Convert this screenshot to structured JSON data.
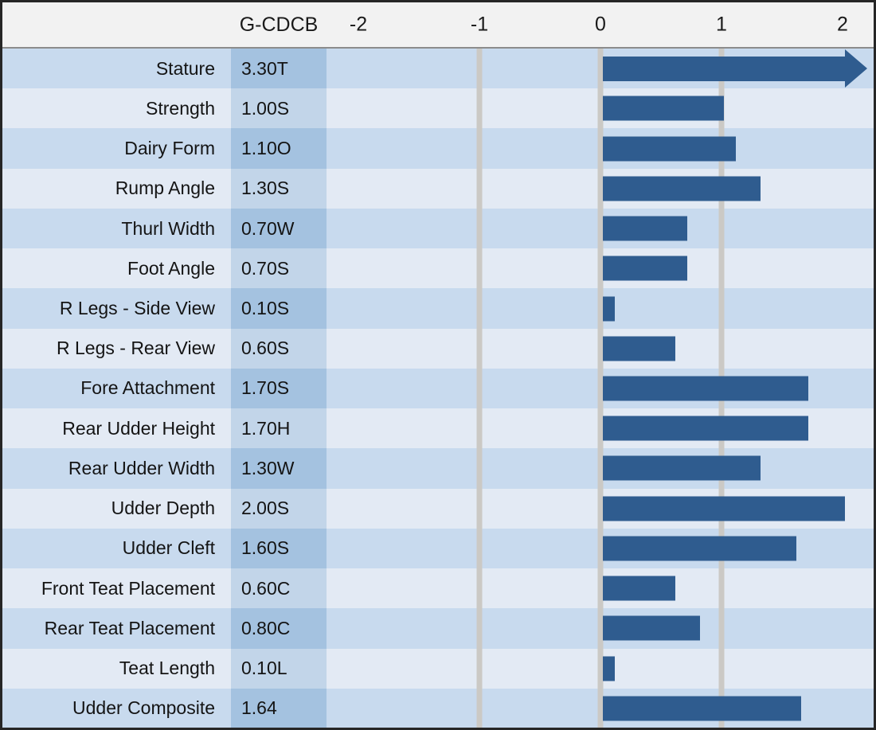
{
  "colors": {
    "bar": "#2f5c8f",
    "gridline": "#cbc9c5",
    "header_bg": "#f2f2f2",
    "outer_border": "#262626",
    "row_stripe_dark": "#c8daee",
    "row_stripe_light": "#e3eaf4",
    "value_col_stripe_dark": "#a4c2e0",
    "value_col_stripe_light": "#c2d5e9",
    "text": "#141414"
  },
  "chart_data": {
    "type": "bar",
    "orientation": "horizontal",
    "title": "",
    "xlabel": "",
    "ylabel": "",
    "value_column_header": "G-CDCB",
    "axis_ticks": [
      -2,
      -1,
      0,
      1,
      2
    ],
    "gridlines_at": [
      -1,
      0,
      1
    ],
    "xlim": [
      -2.3,
      2.25
    ],
    "bar_display_cap": 2.0,
    "legend": "none",
    "rows": [
      {
        "trait": "Stature",
        "value_label": "3.30T",
        "value": 3.3,
        "overflow_arrow": true
      },
      {
        "trait": "Strength",
        "value_label": "1.00S",
        "value": 1.0,
        "overflow_arrow": false
      },
      {
        "trait": "Dairy Form",
        "value_label": "1.10O",
        "value": 1.1,
        "overflow_arrow": false
      },
      {
        "trait": "Rump Angle",
        "value_label": "1.30S",
        "value": 1.3,
        "overflow_arrow": false
      },
      {
        "trait": "Thurl Width",
        "value_label": "0.70W",
        "value": 0.7,
        "overflow_arrow": false
      },
      {
        "trait": "Foot Angle",
        "value_label": "0.70S",
        "value": 0.7,
        "overflow_arrow": false
      },
      {
        "trait": "R Legs - Side View",
        "value_label": "0.10S",
        "value": 0.1,
        "overflow_arrow": false
      },
      {
        "trait": "R Legs - Rear View",
        "value_label": "0.60S",
        "value": 0.6,
        "overflow_arrow": false
      },
      {
        "trait": "Fore Attachment",
        "value_label": "1.70S",
        "value": 1.7,
        "overflow_arrow": false
      },
      {
        "trait": "Rear Udder Height",
        "value_label": "1.70H",
        "value": 1.7,
        "overflow_arrow": false
      },
      {
        "trait": "Rear Udder Width",
        "value_label": "1.30W",
        "value": 1.3,
        "overflow_arrow": false
      },
      {
        "trait": "Udder Depth",
        "value_label": "2.00S",
        "value": 2.0,
        "overflow_arrow": false
      },
      {
        "trait": "Udder Cleft",
        "value_label": "1.60S",
        "value": 1.6,
        "overflow_arrow": false
      },
      {
        "trait": "Front Teat Placement",
        "value_label": "0.60C",
        "value": 0.6,
        "overflow_arrow": false
      },
      {
        "trait": "Rear Teat Placement",
        "value_label": "0.80C",
        "value": 0.8,
        "overflow_arrow": false
      },
      {
        "trait": "Teat Length",
        "value_label": "0.10L",
        "value": 0.1,
        "overflow_arrow": false
      },
      {
        "trait": "Udder Composite",
        "value_label": "1.64",
        "value": 1.64,
        "overflow_arrow": false
      }
    ]
  }
}
